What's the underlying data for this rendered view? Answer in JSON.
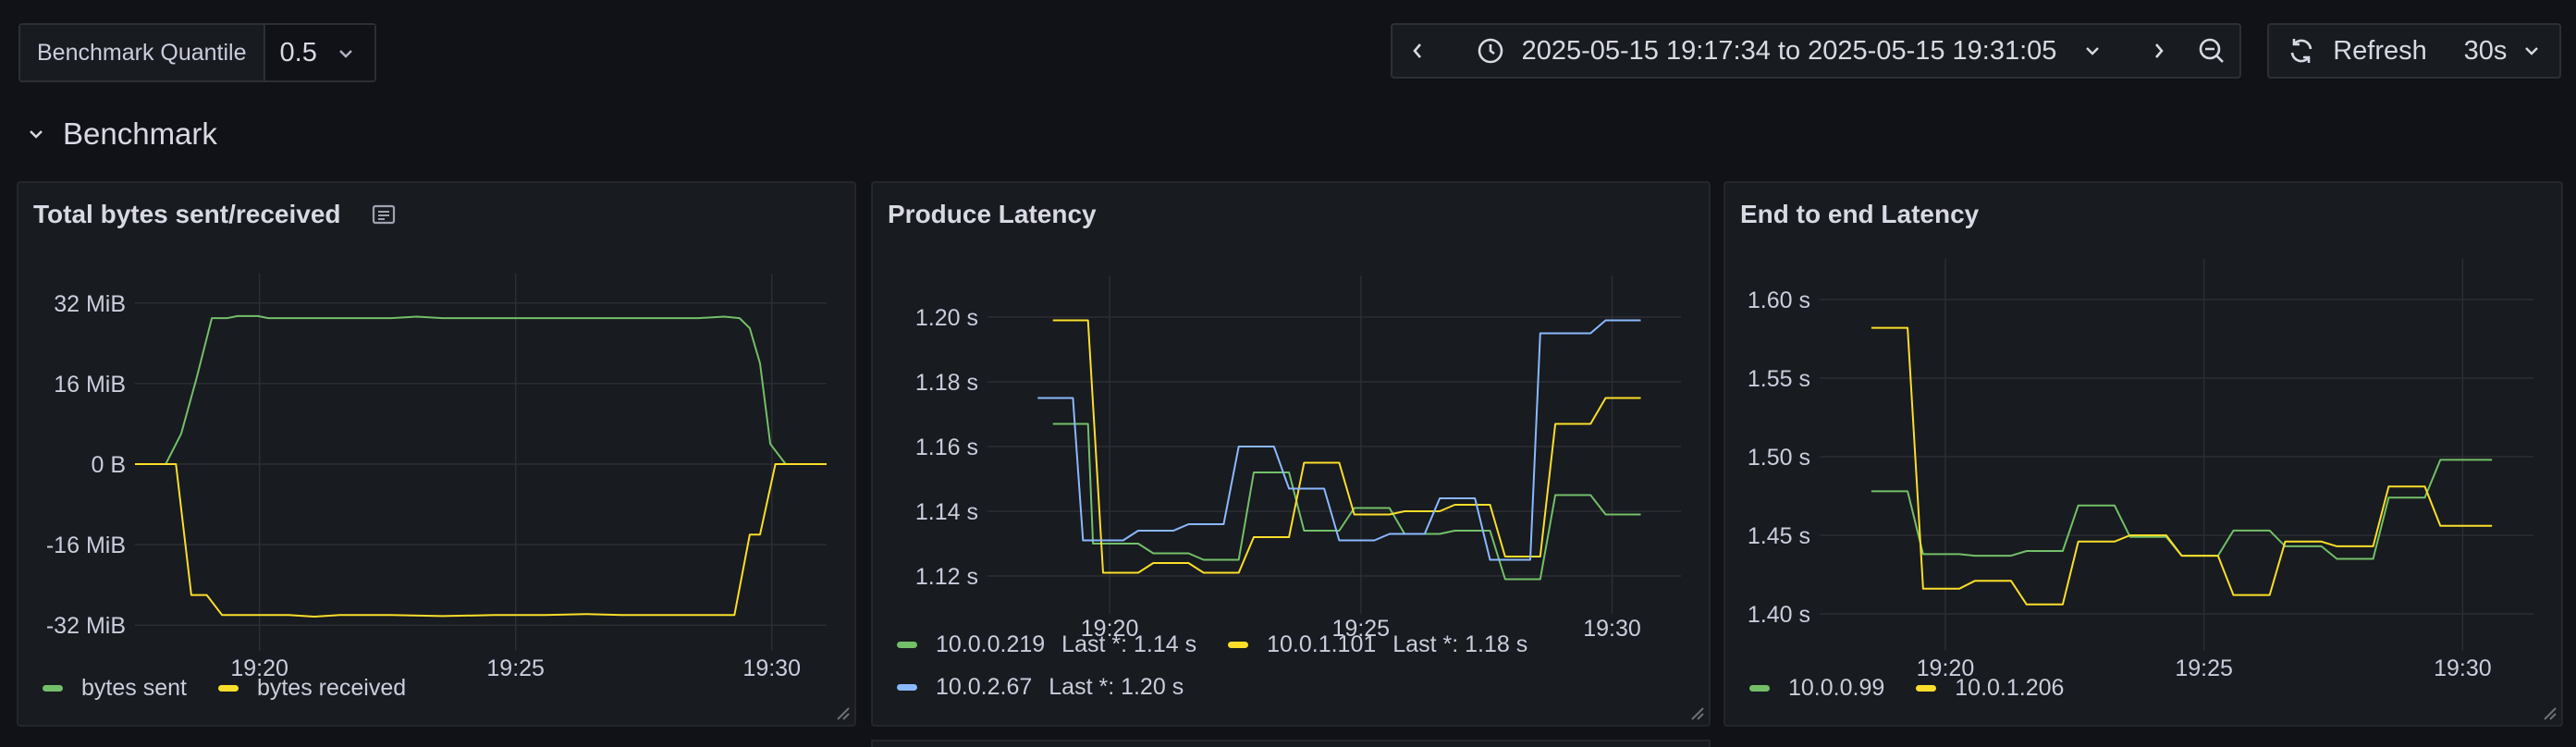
{
  "variable": {
    "label": "Benchmark Quantile",
    "value": "0.5"
  },
  "time_range": "2025-05-15 19:17:34 to 2025-05-15 19:31:05",
  "refresh": {
    "label": "Refresh",
    "interval": "30s"
  },
  "row": {
    "title": "Benchmark"
  },
  "colors": {
    "green": "#73bf69",
    "yellow": "#fade2a",
    "blue": "#8ab8ff",
    "grid": "#2c2e34",
    "text": "#ccccdc"
  },
  "panels": [
    {
      "title": "Total bytes sent/received",
      "legend": [
        {
          "label": "bytes sent"
        },
        {
          "label": "bytes received"
        }
      ]
    },
    {
      "title": "Produce Latency",
      "legend": [
        {
          "label": "10.0.0.219",
          "last": "Last *: 1.14 s"
        },
        {
          "label": "10.0.1.101",
          "last": "Last *: 1.18 s"
        },
        {
          "label": "10.0.2.67",
          "last": "Last *: 1.20 s"
        }
      ]
    },
    {
      "title": "End to end Latency",
      "legend": [
        {
          "label": "10.0.0.99"
        },
        {
          "label": "10.0.1.206"
        }
      ]
    }
  ],
  "chart_data": [
    {
      "type": "line",
      "title": "Total bytes sent/received",
      "x_ticks": [
        2.43,
        7.43,
        12.43
      ],
      "x_tick_labels": [
        "19:20",
        "19:25",
        "19:30"
      ],
      "xlim": [
        0,
        13.5
      ],
      "y_ticks": [
        32,
        16,
        0,
        -16,
        -32
      ],
      "y_tick_labels": [
        "32 MiB",
        "16 MiB",
        "0 B",
        "-16 MiB",
        "-32 MiB"
      ],
      "ylim": [
        -36,
        36
      ],
      "series": [
        {
          "name": "bytes sent",
          "color": "green",
          "points": [
            [
              0,
              0
            ],
            [
              0.6,
              0
            ],
            [
              0.9,
              6
            ],
            [
              1.2,
              17
            ],
            [
              1.5,
              29
            ],
            [
              1.8,
              29
            ],
            [
              2,
              29.4
            ],
            [
              2.4,
              29.4
            ],
            [
              2.6,
              29
            ],
            [
              3,
              29
            ],
            [
              4,
              29
            ],
            [
              5,
              29
            ],
            [
              5.5,
              29.3
            ],
            [
              6,
              29
            ],
            [
              7,
              29
            ],
            [
              8,
              29
            ],
            [
              9,
              29
            ],
            [
              10,
              29
            ],
            [
              11,
              29
            ],
            [
              11.5,
              29.3
            ],
            [
              11.8,
              29
            ],
            [
              12,
              27
            ],
            [
              12.2,
              20
            ],
            [
              12.4,
              4
            ],
            [
              12.7,
              0
            ],
            [
              13.5,
              0
            ]
          ]
        },
        {
          "name": "bytes received",
          "color": "yellow",
          "points": [
            [
              0,
              0
            ],
            [
              0.8,
              0
            ],
            [
              1.1,
              -26
            ],
            [
              1.4,
              -26
            ],
            [
              1.7,
              -30
            ],
            [
              2,
              -30
            ],
            [
              3,
              -30
            ],
            [
              3.5,
              -30.3
            ],
            [
              4,
              -30
            ],
            [
              5,
              -30
            ],
            [
              6,
              -30.2
            ],
            [
              7,
              -30
            ],
            [
              8,
              -30
            ],
            [
              8.8,
              -29.8
            ],
            [
              9.5,
              -30
            ],
            [
              10,
              -30
            ],
            [
              11,
              -30
            ],
            [
              11.5,
              -30
            ],
            [
              11.7,
              -30
            ],
            [
              12,
              -14
            ],
            [
              12.2,
              -14
            ],
            [
              12.5,
              0
            ],
            [
              13.5,
              0
            ]
          ]
        }
      ]
    },
    {
      "type": "line",
      "title": "Produce Latency",
      "x_ticks": [
        2.43,
        7.43,
        12.43
      ],
      "x_tick_labels": [
        "19:20",
        "19:25",
        "19:30"
      ],
      "xlim": [
        0,
        13.8
      ],
      "y_ticks": [
        1.2,
        1.18,
        1.16,
        1.14,
        1.12
      ],
      "y_tick_labels": [
        "1.20 s",
        "1.18 s",
        "1.16 s",
        "1.14 s",
        "1.12 s"
      ],
      "ylim": [
        1.11,
        1.21
      ],
      "series": [
        {
          "name": "10.0.0.219",
          "color": "green",
          "points": [
            [
              1.3,
              1.167
            ],
            [
              2.0,
              1.167
            ],
            [
              2.1,
              1.13
            ],
            [
              3.0,
              1.13
            ],
            [
              3.3,
              1.127
            ],
            [
              4.0,
              1.127
            ],
            [
              4.3,
              1.125
            ],
            [
              5.0,
              1.125
            ],
            [
              5.3,
              1.152
            ],
            [
              6.0,
              1.152
            ],
            [
              6.3,
              1.134
            ],
            [
              7.0,
              1.134
            ],
            [
              7.3,
              1.141
            ],
            [
              8.0,
              1.141
            ],
            [
              8.3,
              1.133
            ],
            [
              9.0,
              1.133
            ],
            [
              9.3,
              1.134
            ],
            [
              10.0,
              1.134
            ],
            [
              10.3,
              1.119
            ],
            [
              11.0,
              1.119
            ],
            [
              11.3,
              1.145
            ],
            [
              12.0,
              1.145
            ],
            [
              12.3,
              1.139
            ],
            [
              13.0,
              1.139
            ]
          ]
        },
        {
          "name": "10.0.1.101",
          "color": "yellow",
          "points": [
            [
              1.3,
              1.199
            ],
            [
              2.0,
              1.199
            ],
            [
              2.3,
              1.121
            ],
            [
              3.0,
              1.121
            ],
            [
              3.3,
              1.124
            ],
            [
              4.0,
              1.124
            ],
            [
              4.3,
              1.121
            ],
            [
              5.0,
              1.121
            ],
            [
              5.3,
              1.132
            ],
            [
              6.0,
              1.132
            ],
            [
              6.3,
              1.155
            ],
            [
              7.0,
              1.155
            ],
            [
              7.3,
              1.139
            ],
            [
              8.0,
              1.139
            ],
            [
              8.3,
              1.14
            ],
            [
              9.0,
              1.14
            ],
            [
              9.3,
              1.142
            ],
            [
              10.0,
              1.142
            ],
            [
              10.3,
              1.126
            ],
            [
              11.0,
              1.126
            ],
            [
              11.3,
              1.167
            ],
            [
              12.0,
              1.167
            ],
            [
              12.3,
              1.175
            ],
            [
              13.0,
              1.175
            ]
          ]
        },
        {
          "name": "10.0.2.67",
          "color": "blue",
          "points": [
            [
              1.0,
              1.175
            ],
            [
              1.7,
              1.175
            ],
            [
              1.9,
              1.131
            ],
            [
              2.7,
              1.131
            ],
            [
              3.0,
              1.134
            ],
            [
              3.7,
              1.134
            ],
            [
              4.0,
              1.136
            ],
            [
              4.7,
              1.136
            ],
            [
              5.0,
              1.16
            ],
            [
              5.7,
              1.16
            ],
            [
              6.0,
              1.147
            ],
            [
              6.7,
              1.147
            ],
            [
              7.0,
              1.131
            ],
            [
              7.7,
              1.131
            ],
            [
              8.0,
              1.133
            ],
            [
              8.7,
              1.133
            ],
            [
              9.0,
              1.144
            ],
            [
              9.7,
              1.144
            ],
            [
              10.0,
              1.125
            ],
            [
              10.8,
              1.125
            ],
            [
              11.0,
              1.195
            ],
            [
              12.0,
              1.195
            ],
            [
              12.3,
              1.199
            ],
            [
              13.0,
              1.199
            ]
          ]
        }
      ]
    },
    {
      "type": "line",
      "title": "End to end Latency",
      "x_ticks": [
        2.43,
        7.43,
        12.43
      ],
      "x_tick_labels": [
        "19:20",
        "19:25",
        "19:30"
      ],
      "xlim": [
        0,
        13.8
      ],
      "y_ticks": [
        1.6,
        1.55,
        1.5,
        1.45,
        1.4
      ],
      "y_tick_labels": [
        "1.60 s",
        "1.55 s",
        "1.50 s",
        "1.45 s",
        "1.40 s"
      ],
      "ylim": [
        1.38,
        1.62
      ],
      "series": [
        {
          "name": "10.0.0.99",
          "color": "green",
          "points": [
            [
              1.0,
              1.478
            ],
            [
              1.7,
              1.478
            ],
            [
              2.0,
              1.438
            ],
            [
              2.7,
              1.438
            ],
            [
              3.0,
              1.437
            ],
            [
              3.7,
              1.437
            ],
            [
              4.0,
              1.44
            ],
            [
              4.7,
              1.44
            ],
            [
              5.0,
              1.469
            ],
            [
              5.7,
              1.469
            ],
            [
              6.0,
              1.449
            ],
            [
              6.7,
              1.449
            ],
            [
              7.0,
              1.437
            ],
            [
              7.7,
              1.437
            ],
            [
              8.0,
              1.453
            ],
            [
              8.7,
              1.453
            ],
            [
              9.0,
              1.443
            ],
            [
              9.7,
              1.443
            ],
            [
              10.0,
              1.435
            ],
            [
              10.7,
              1.435
            ],
            [
              11.0,
              1.474
            ],
            [
              11.7,
              1.474
            ],
            [
              12.0,
              1.498
            ],
            [
              13.0,
              1.498
            ]
          ]
        },
        {
          "name": "10.0.1.206",
          "color": "yellow",
          "points": [
            [
              1.0,
              1.582
            ],
            [
              1.7,
              1.582
            ],
            [
              2.0,
              1.416
            ],
            [
              2.7,
              1.416
            ],
            [
              3.0,
              1.421
            ],
            [
              3.7,
              1.421
            ],
            [
              4.0,
              1.406
            ],
            [
              4.7,
              1.406
            ],
            [
              5.0,
              1.446
            ],
            [
              5.7,
              1.446
            ],
            [
              6.0,
              1.45
            ],
            [
              6.7,
              1.45
            ],
            [
              7.0,
              1.437
            ],
            [
              7.7,
              1.437
            ],
            [
              8.0,
              1.412
            ],
            [
              8.7,
              1.412
            ],
            [
              9.0,
              1.446
            ],
            [
              9.7,
              1.446
            ],
            [
              10.0,
              1.443
            ],
            [
              10.7,
              1.443
            ],
            [
              11.0,
              1.481
            ],
            [
              11.7,
              1.481
            ],
            [
              12.0,
              1.456
            ],
            [
              13.0,
              1.456
            ]
          ]
        }
      ]
    }
  ]
}
